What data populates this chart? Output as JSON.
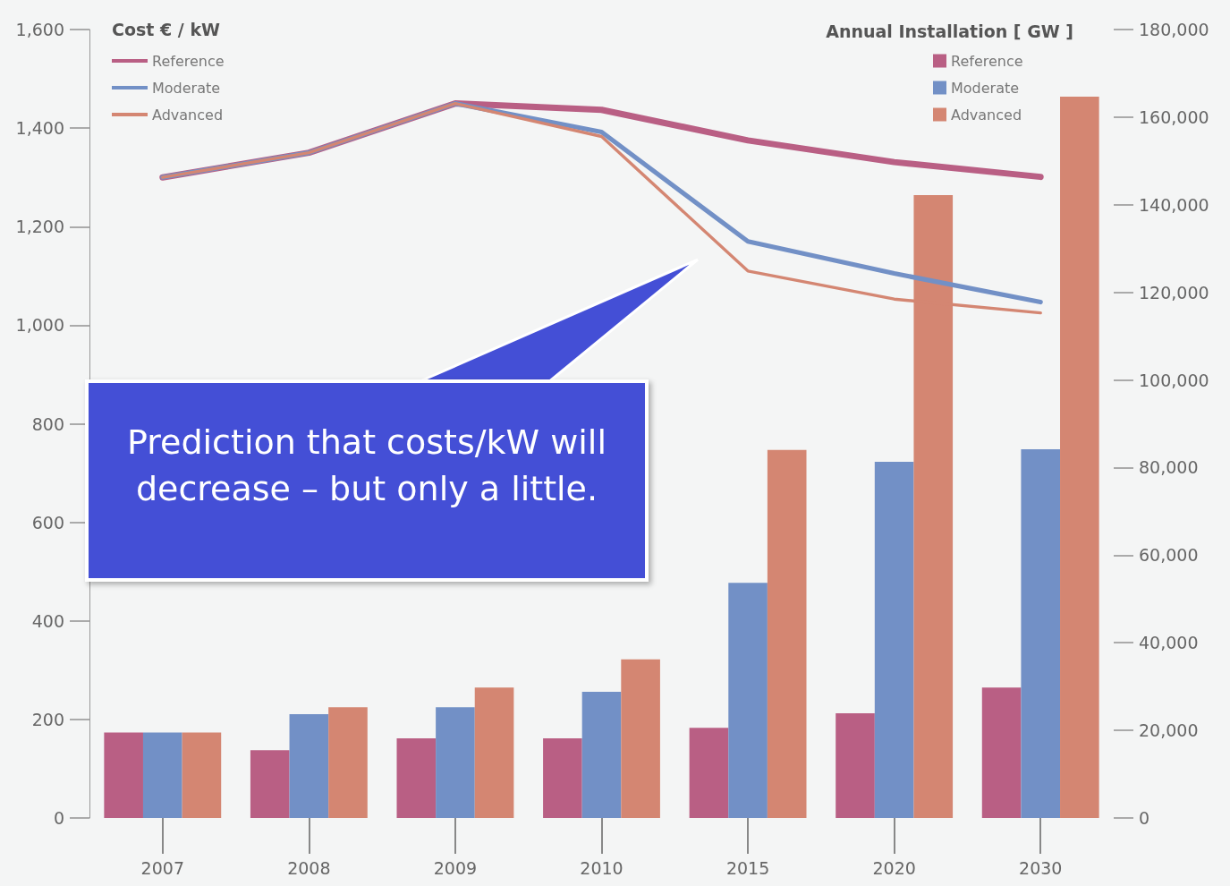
{
  "chart_data": {
    "type": "bar",
    "ylabel": "Cost € / kW",
    "y2label": "Annual Installation [ GW ]",
    "categories": [
      "2007",
      "2008",
      "2009",
      "2010",
      "2015",
      "2020",
      "2030"
    ],
    "series": [
      {
        "name": "Reference",
        "axis": "y2",
        "color": "#b95f84",
        "values": [
          19500,
          15500,
          18200,
          18200,
          20600,
          23900,
          29800
        ]
      },
      {
        "name": "Moderate",
        "axis": "y2",
        "color": "#7290c6",
        "values": [
          19500,
          23700,
          25300,
          28800,
          53700,
          81300,
          84200
        ]
      },
      {
        "name": "Advanced",
        "axis": "y2",
        "color": "#d48672",
        "values": [
          19500,
          25300,
          29800,
          36200,
          84000,
          142200,
          164700
        ]
      },
      {
        "name": "Reference",
        "type": "line",
        "color": "#b95f84",
        "values": [
          1300,
          1350,
          1450,
          1437,
          1375,
          1331,
          1301
        ]
      },
      {
        "name": "Moderate",
        "type": "line",
        "color": "#7290c6",
        "values": [
          1300,
          1350,
          1450,
          1392,
          1170,
          1105,
          1047
        ]
      },
      {
        "name": "Advanced",
        "type": "line",
        "color": "#d48672",
        "values": [
          1300,
          1350,
          1450,
          1383,
          1110,
          1053,
          1025
        ]
      }
    ],
    "ylim": [
      0,
      1600
    ],
    "yticks": [
      0,
      200,
      400,
      600,
      800,
      {
        "value": 1000,
        "label": "1,000"
      },
      {
        "value": 1200,
        "label": "1,200"
      },
      {
        "value": 1400,
        "label": "1,400"
      },
      {
        "value": 1600,
        "label": "1,600"
      }
    ],
    "y2lim": [
      0,
      180000
    ],
    "y2ticks": [
      0,
      {
        "value": 20000,
        "label": "20,000"
      },
      {
        "value": 40000,
        "label": "40,000"
      },
      {
        "value": 60000,
        "label": "60,000"
      },
      {
        "value": 80000,
        "label": "80,000"
      },
      {
        "value": 100000,
        "label": "100,000"
      },
      {
        "value": 120000,
        "label": "120,000"
      },
      {
        "value": 140000,
        "label": "140,000"
      },
      {
        "value": 160000,
        "label": "160,000"
      },
      {
        "value": 180000,
        "label": "180,000"
      }
    ],
    "legend": "top",
    "marker": "none",
    "line_style": "solid",
    "grid": false,
    "annotations": [
      "Prediction that costs/kW will decrease – but only a little."
    ]
  }
}
